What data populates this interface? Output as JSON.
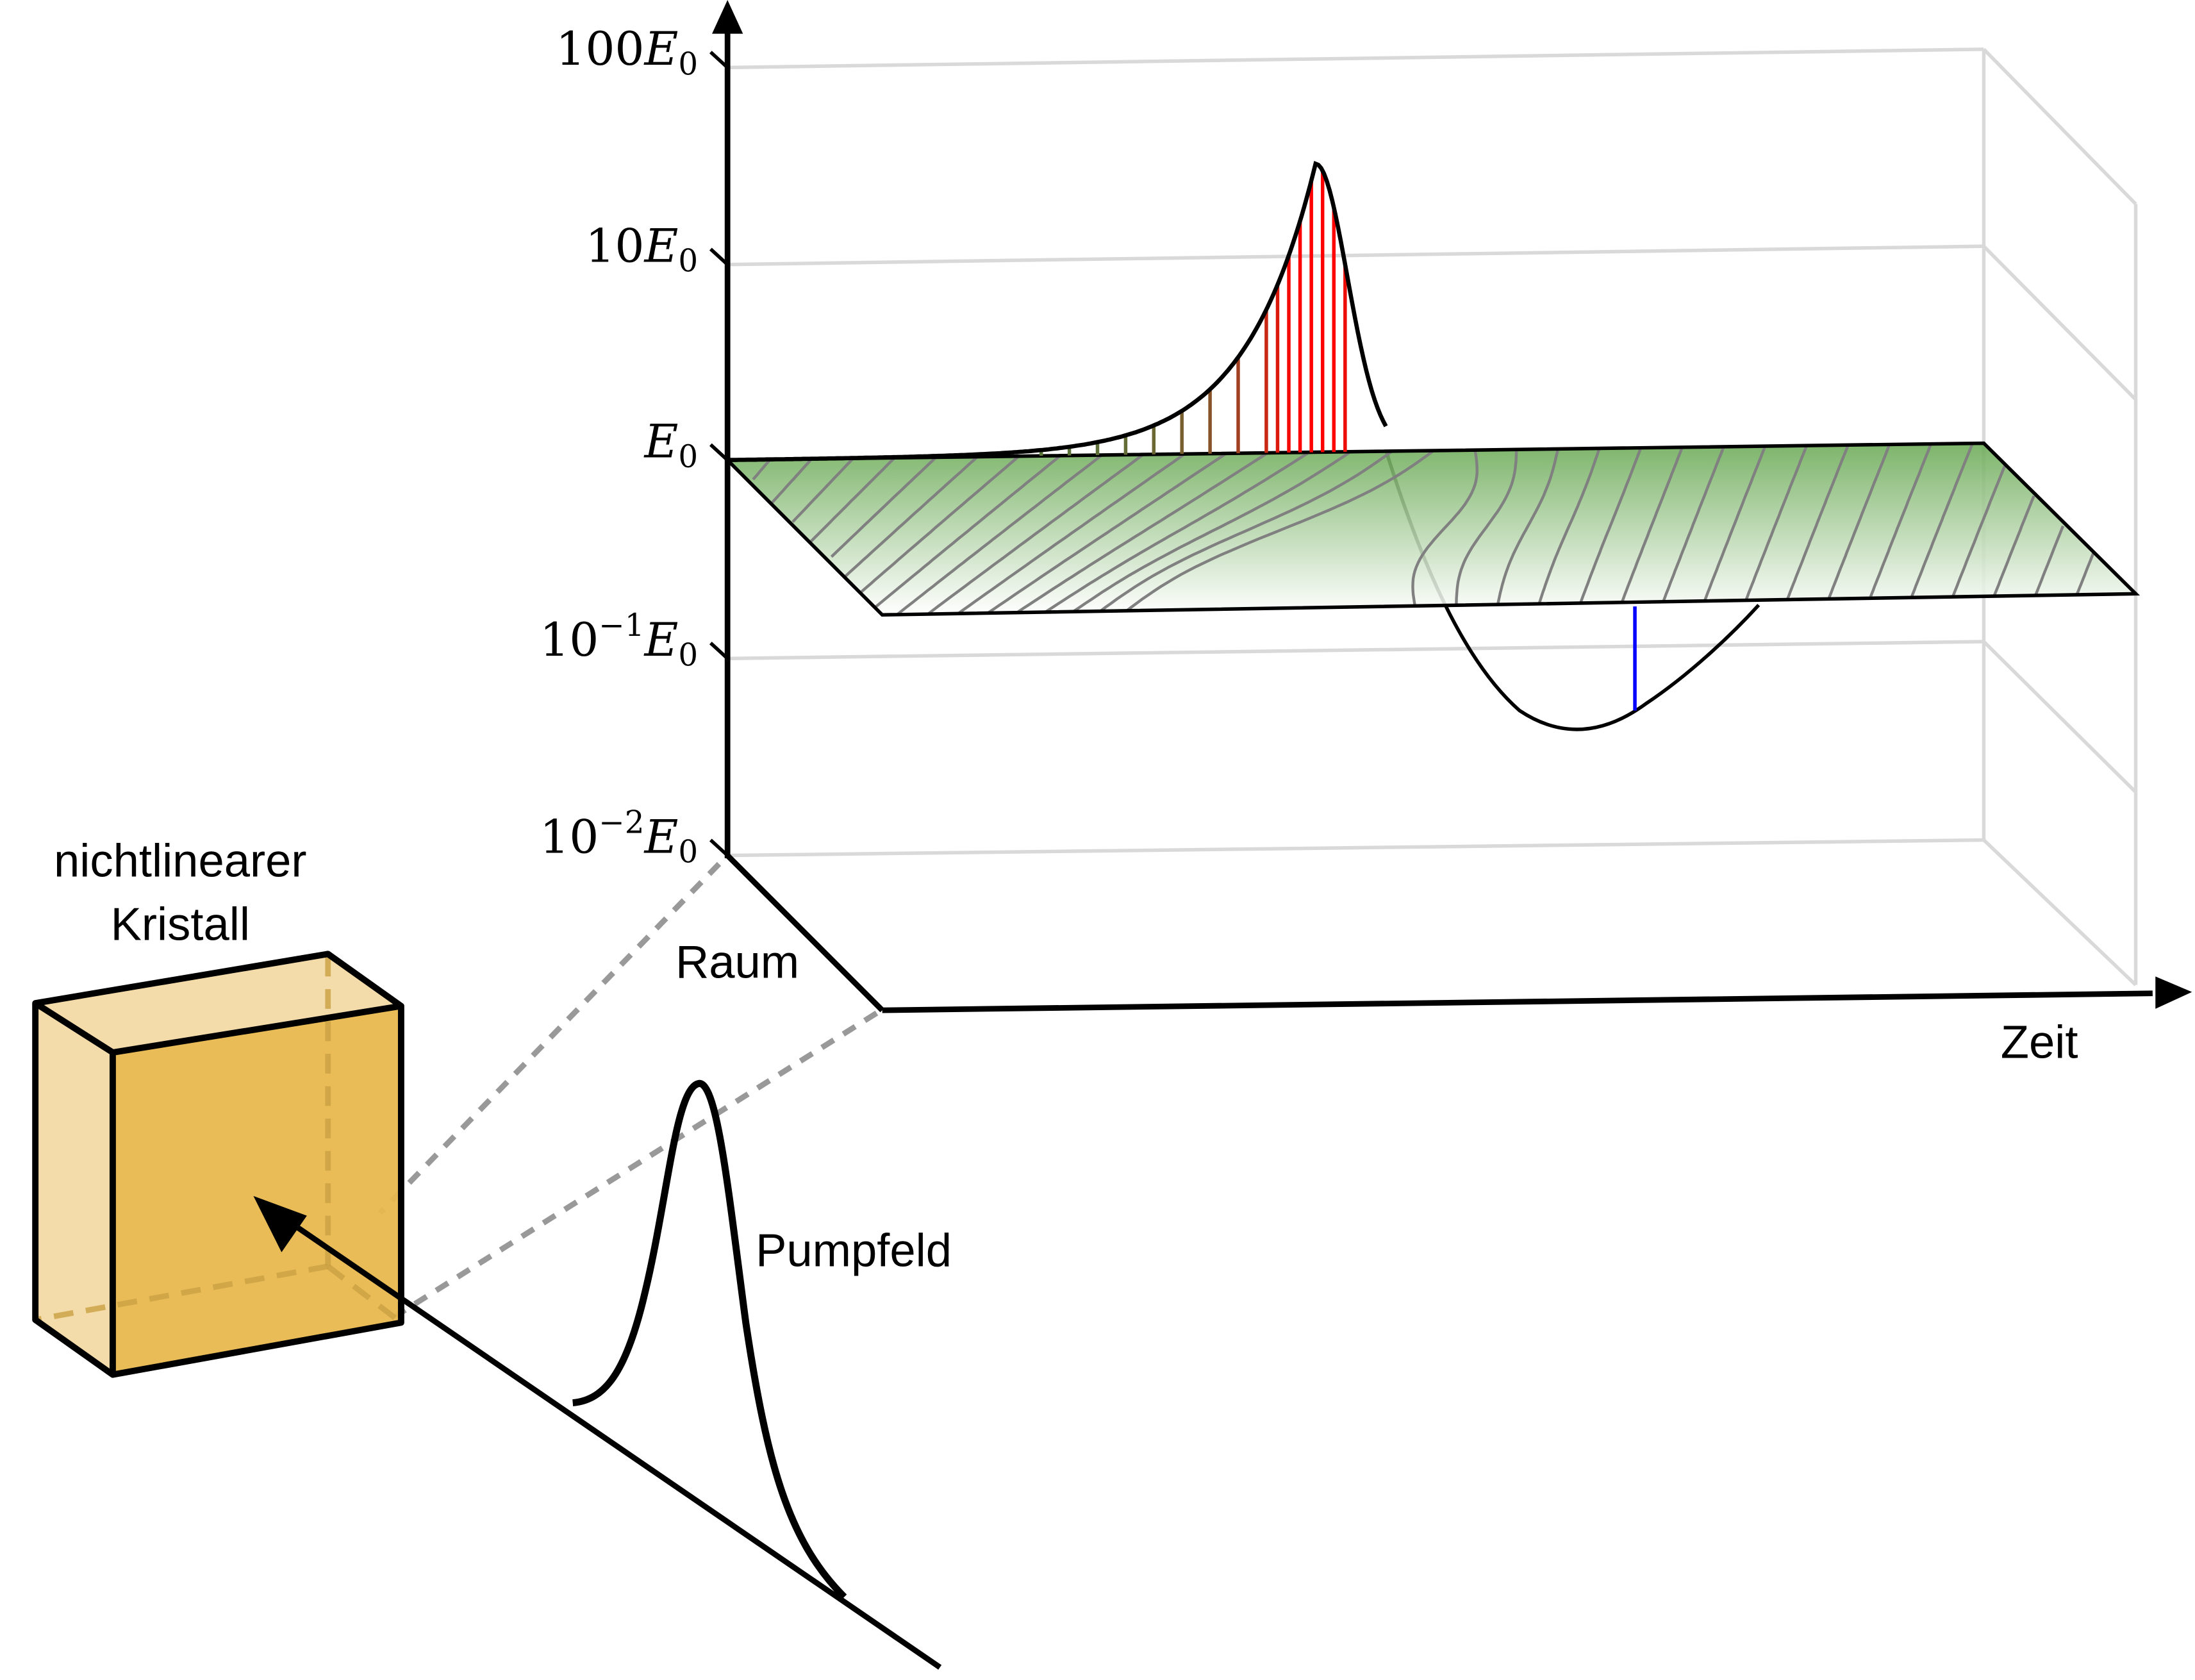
{
  "axes": {
    "vertical_scale": "log",
    "ticks": [
      {
        "base": "100",
        "exp": "",
        "symbol": "E",
        "sub": "0",
        "value": 100
      },
      {
        "base": "10",
        "exp": "",
        "symbol": "E",
        "sub": "0",
        "value": 10
      },
      {
        "base": "",
        "exp": "",
        "symbol": "E",
        "sub": "0",
        "value": 1
      },
      {
        "base": "10",
        "exp": "−1",
        "symbol": "E",
        "sub": "0",
        "value": 0.1
      },
      {
        "base": "10",
        "exp": "−2",
        "symbol": "E",
        "sub": "0",
        "value": 0.01
      }
    ],
    "space_label": "Raum",
    "time_label": "Zeit"
  },
  "crystal": {
    "label_line1": "nichtlinearer",
    "label_line2": "Kristall",
    "front_color": "#e8b84e",
    "side_color": "#f4dcaa"
  },
  "pump": {
    "label": "Pumpfeld"
  },
  "colors": {
    "peak_stem": "#ff0000",
    "dip_stem": "#0000ff",
    "surface_top": "#6aaa55",
    "grid": "#d9d9d9",
    "projection": "#999999"
  }
}
